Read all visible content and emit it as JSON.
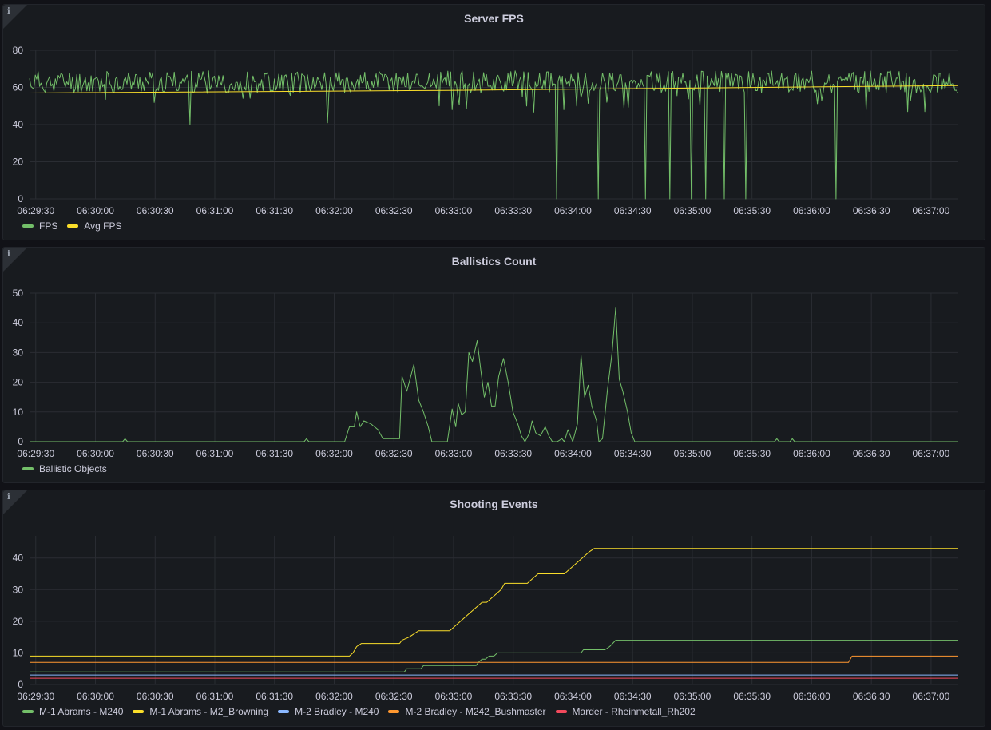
{
  "panels": [
    {
      "title": "Server FPS",
      "info_icon": "info-icon",
      "chart": {
        "type": "line",
        "x_tick_labels": [
          "06:29:30",
          "06:30:00",
          "06:30:30",
          "06:31:00",
          "06:31:30",
          "06:32:00",
          "06:32:30",
          "06:33:00",
          "06:33:30",
          "06:34:00",
          "06:34:30",
          "06:35:00",
          "06:35:30",
          "06:36:00",
          "06:36:30",
          "06:37:00"
        ],
        "y_ticks": [
          0,
          20,
          40,
          60,
          80
        ],
        "ylim": [
          0,
          80
        ],
        "grid": true,
        "legend_placement": "bottom-left"
      },
      "series": [
        {
          "name": "FPS",
          "color": "#73bf69",
          "kind": "noisy",
          "base": 63,
          "amp": 6,
          "seed": 11,
          "spikes": [
            [
              6.7,
              40
            ],
            [
              12.5,
              41
            ],
            [
              14.4,
              60
            ],
            [
              17.7,
              48
            ],
            [
              20.8,
              50
            ],
            [
              22.1,
              0
            ],
            [
              22.4,
              48
            ],
            [
              22.9,
              50
            ],
            [
              23.8,
              0
            ],
            [
              24.2,
              52
            ],
            [
              25.8,
              0
            ],
            [
              26.8,
              0
            ],
            [
              27.7,
              0
            ],
            [
              28.3,
              0
            ],
            [
              29.1,
              0
            ],
            [
              30.0,
              0
            ],
            [
              33.8,
              0
            ],
            [
              36.8,
              47
            ],
            [
              37.5,
              47
            ]
          ]
        },
        {
          "name": "Avg FPS",
          "color": "#fade2a",
          "kind": "linear",
          "from": 57,
          "to": 61
        }
      ]
    },
    {
      "title": "Ballistics Count",
      "info_icon": "info-icon",
      "chart": {
        "type": "line",
        "x_tick_labels": [
          "06:29:30",
          "06:30:00",
          "06:30:30",
          "06:31:00",
          "06:31:30",
          "06:32:00",
          "06:32:30",
          "06:33:00",
          "06:33:30",
          "06:34:00",
          "06:34:30",
          "06:35:00",
          "06:35:30",
          "06:36:00",
          "06:36:30",
          "06:37:00"
        ],
        "y_ticks": [
          0,
          10,
          20,
          30,
          40,
          50
        ],
        "ylim": [
          0,
          50
        ],
        "grid": true,
        "legend_placement": "bottom-left"
      },
      "series": [
        {
          "name": "Ballistic Objects",
          "color": "#73bf69",
          "kind": "points",
          "points": [
            [
              0,
              0
            ],
            [
              3.9,
              0
            ],
            [
              4.0,
              1
            ],
            [
              4.1,
              0
            ],
            [
              11.5,
              0
            ],
            [
              11.6,
              1
            ],
            [
              11.7,
              0
            ],
            [
              13.2,
              0
            ],
            [
              13.4,
              5
            ],
            [
              13.6,
              5
            ],
            [
              13.7,
              10
            ],
            [
              13.85,
              5
            ],
            [
              14.0,
              7
            ],
            [
              14.3,
              6
            ],
            [
              14.6,
              4
            ],
            [
              14.8,
              1
            ],
            [
              15.5,
              1
            ],
            [
              15.6,
              22
            ],
            [
              15.8,
              17
            ],
            [
              15.9,
              20
            ],
            [
              16.1,
              26
            ],
            [
              16.3,
              14
            ],
            [
              16.5,
              10
            ],
            [
              16.7,
              5
            ],
            [
              16.85,
              0
            ],
            [
              17.5,
              0
            ],
            [
              17.7,
              11
            ],
            [
              17.85,
              5
            ],
            [
              17.95,
              13
            ],
            [
              18.1,
              9
            ],
            [
              18.25,
              10
            ],
            [
              18.4,
              30
            ],
            [
              18.55,
              27
            ],
            [
              18.75,
              34
            ],
            [
              18.9,
              24
            ],
            [
              19.05,
              15
            ],
            [
              19.2,
              20
            ],
            [
              19.35,
              12
            ],
            [
              19.5,
              12
            ],
            [
              19.65,
              22
            ],
            [
              19.85,
              28
            ],
            [
              20.05,
              20
            ],
            [
              20.25,
              10
            ],
            [
              20.45,
              6
            ],
            [
              20.6,
              2
            ],
            [
              20.75,
              0
            ],
            [
              20.95,
              3
            ],
            [
              21.05,
              7
            ],
            [
              21.2,
              3
            ],
            [
              21.4,
              2
            ],
            [
              21.6,
              5
            ],
            [
              21.75,
              2
            ],
            [
              21.9,
              0
            ],
            [
              22.1,
              0
            ],
            [
              22.3,
              1
            ],
            [
              22.4,
              0
            ],
            [
              22.55,
              4
            ],
            [
              22.75,
              0
            ],
            [
              22.95,
              6
            ],
            [
              23.1,
              29
            ],
            [
              23.25,
              15
            ],
            [
              23.4,
              19
            ],
            [
              23.55,
              12
            ],
            [
              23.75,
              7
            ],
            [
              23.85,
              0
            ],
            [
              24.0,
              1
            ],
            [
              24.2,
              17
            ],
            [
              24.4,
              30
            ],
            [
              24.55,
              45
            ],
            [
              24.7,
              21
            ],
            [
              24.85,
              17
            ],
            [
              25.05,
              10
            ],
            [
              25.2,
              3
            ],
            [
              25.35,
              0
            ],
            [
              26.5,
              0
            ],
            [
              31.2,
              0
            ],
            [
              31.3,
              1
            ],
            [
              31.4,
              0
            ],
            [
              31.85,
              0
            ],
            [
              31.95,
              1
            ],
            [
              32.05,
              0
            ],
            [
              38.9,
              0
            ]
          ]
        }
      ]
    },
    {
      "title": "Shooting Events",
      "info_icon": "info-icon",
      "chart": {
        "type": "line",
        "x_tick_labels": [
          "06:29:30",
          "06:30:00",
          "06:30:30",
          "06:31:00",
          "06:31:30",
          "06:32:00",
          "06:32:30",
          "06:33:00",
          "06:33:30",
          "06:34:00",
          "06:34:30",
          "06:35:00",
          "06:35:30",
          "06:36:00",
          "06:36:30",
          "06:37:00"
        ],
        "y_ticks": [
          0,
          10,
          20,
          30,
          40
        ],
        "ylim": [
          0,
          47
        ],
        "grid": true,
        "legend_placement": "bottom-left"
      },
      "series": [
        {
          "name": "M-1 Abrams - M240",
          "color": "#73bf69",
          "kind": "points",
          "points": [
            [
              0,
              4
            ],
            [
              15.7,
              4
            ],
            [
              15.8,
              5
            ],
            [
              16.4,
              5
            ],
            [
              16.5,
              6
            ],
            [
              18.7,
              6
            ],
            [
              18.8,
              7
            ],
            [
              18.95,
              8
            ],
            [
              19.1,
              8
            ],
            [
              19.25,
              9
            ],
            [
              19.45,
              9
            ],
            [
              19.6,
              10
            ],
            [
              23.1,
              10
            ],
            [
              23.2,
              11
            ],
            [
              24.1,
              11
            ],
            [
              24.3,
              12
            ],
            [
              24.55,
              14
            ],
            [
              38.9,
              14
            ]
          ]
        },
        {
          "name": "M-1 Abrams - M2_Browning",
          "color": "#fade2a",
          "kind": "points",
          "points": [
            [
              0,
              9
            ],
            [
              13.4,
              9
            ],
            [
              13.55,
              10
            ],
            [
              13.7,
              12
            ],
            [
              13.9,
              13
            ],
            [
              15.5,
              13
            ],
            [
              15.6,
              14
            ],
            [
              15.9,
              15
            ],
            [
              16.1,
              16
            ],
            [
              16.3,
              17
            ],
            [
              16.55,
              17
            ],
            [
              17.6,
              17
            ],
            [
              17.75,
              18
            ],
            [
              17.9,
              19
            ],
            [
              18.05,
              20
            ],
            [
              18.2,
              21
            ],
            [
              18.35,
              22
            ],
            [
              18.5,
              23
            ],
            [
              18.65,
              24
            ],
            [
              18.8,
              25
            ],
            [
              18.95,
              26
            ],
            [
              19.15,
              26
            ],
            [
              19.3,
              27
            ],
            [
              19.45,
              28
            ],
            [
              19.6,
              29
            ],
            [
              19.75,
              30
            ],
            [
              19.9,
              32
            ],
            [
              20.85,
              32
            ],
            [
              21.0,
              33
            ],
            [
              21.15,
              34
            ],
            [
              21.3,
              35
            ],
            [
              22.4,
              35
            ],
            [
              22.55,
              36
            ],
            [
              22.7,
              37
            ],
            [
              22.85,
              38
            ],
            [
              23.0,
              39
            ],
            [
              23.15,
              40
            ],
            [
              23.3,
              41
            ],
            [
              23.45,
              42
            ],
            [
              23.65,
              43
            ],
            [
              38.9,
              43
            ]
          ]
        },
        {
          "name": "M-2 Bradley - M240",
          "color": "#8ab8ff",
          "kind": "points",
          "points": [
            [
              0,
              3
            ],
            [
              38.9,
              3
            ]
          ]
        },
        {
          "name": "M-2 Bradley - M242_Bushmaster",
          "color": "#ff9830",
          "kind": "points",
          "points": [
            [
              0,
              7
            ],
            [
              34.3,
              7
            ],
            [
              34.45,
              9
            ],
            [
              38.9,
              9
            ]
          ]
        },
        {
          "name": "Marder - Rheinmetall_Rh202",
          "color": "#f2495c",
          "kind": "points",
          "points": [
            [
              0,
              2
            ],
            [
              38.9,
              2
            ]
          ]
        }
      ]
    }
  ]
}
